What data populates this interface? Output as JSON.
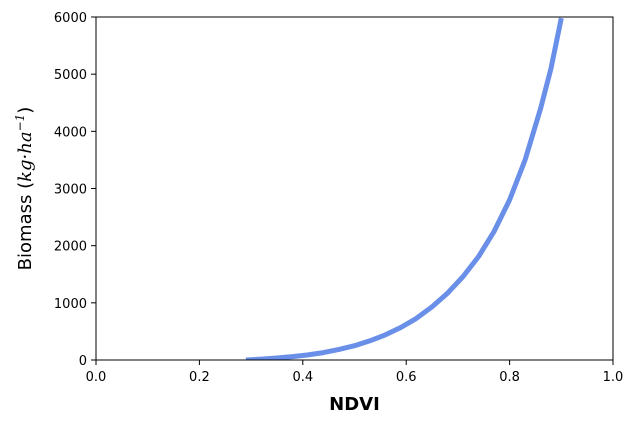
{
  "chart_data": {
    "type": "line",
    "title": "",
    "xlabel": "NDVI",
    "ylabel": {
      "prefix": "Biomass (",
      "unit_main": "kg·ha",
      "unit_exp": "−1",
      "suffix": ")"
    },
    "xlim": [
      0.0,
      1.0
    ],
    "ylim": [
      0,
      6000
    ],
    "x_ticks": [
      "0.0",
      "0.2",
      "0.4",
      "0.6",
      "0.8",
      "1.0"
    ],
    "y_ticks": [
      "0",
      "1000",
      "2000",
      "3000",
      "4000",
      "5000",
      "6000"
    ],
    "grid": false,
    "legend": false,
    "series": [
      {
        "color": "#6a8fe8",
        "x": [
          0.29,
          0.32,
          0.35,
          0.38,
          0.41,
          0.44,
          0.47,
          0.5,
          0.53,
          0.56,
          0.59,
          0.62,
          0.65,
          0.68,
          0.71,
          0.74,
          0.77,
          0.8,
          0.83,
          0.86,
          0.88,
          0.9
        ],
        "y": [
          0,
          15,
          35,
          60,
          90,
          130,
          185,
          250,
          335,
          440,
          570,
          730,
          930,
          1170,
          1460,
          1810,
          2250,
          2800,
          3500,
          4400,
          5100,
          5980
        ]
      }
    ]
  }
}
